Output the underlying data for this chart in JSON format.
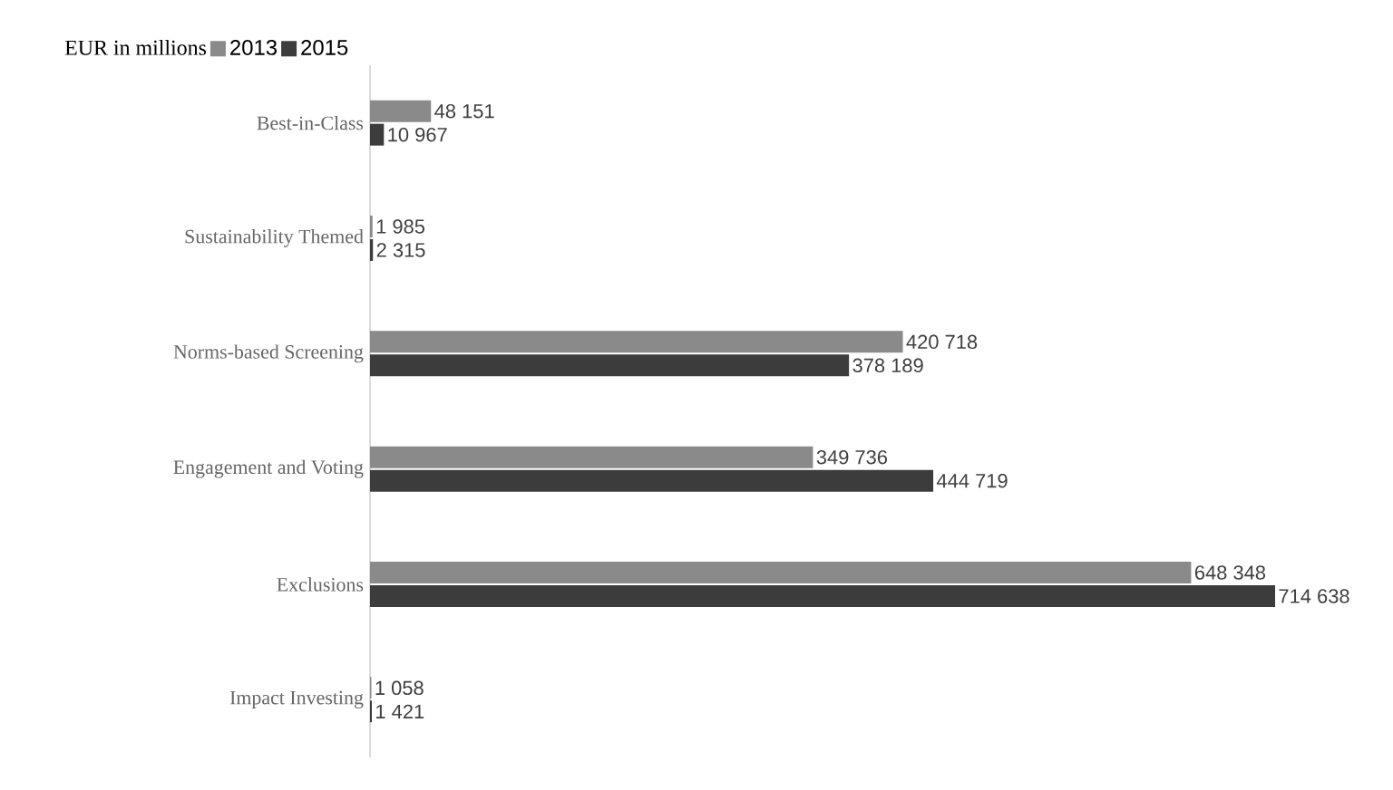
{
  "chart_data": {
    "type": "bar",
    "orientation": "horizontal",
    "legend_title": "EUR in millions",
    "legend": "top left",
    "categories": [
      "Best-in-Class",
      "Sustainability Themed",
      "Norms-based Screening",
      "Engagement and Voting",
      "Exclusions",
      "Impact Investing"
    ],
    "series": [
      {
        "name": "2013",
        "color": "#8a8a8a",
        "values": [
          48151,
          1985,
          420718,
          349736,
          648348,
          1058
        ],
        "value_labels": [
          "48 151",
          "1 985",
          "420 718",
          "349 736",
          "648 348",
          "1 058"
        ]
      },
      {
        "name": "2015",
        "color": "#3c3c3c",
        "values": [
          10967,
          2315,
          378189,
          444719,
          714638,
          1421
        ],
        "value_labels": [
          "10 967",
          "2 315",
          "378 189",
          "444 719",
          "714 638",
          "1 421"
        ]
      }
    ]
  }
}
